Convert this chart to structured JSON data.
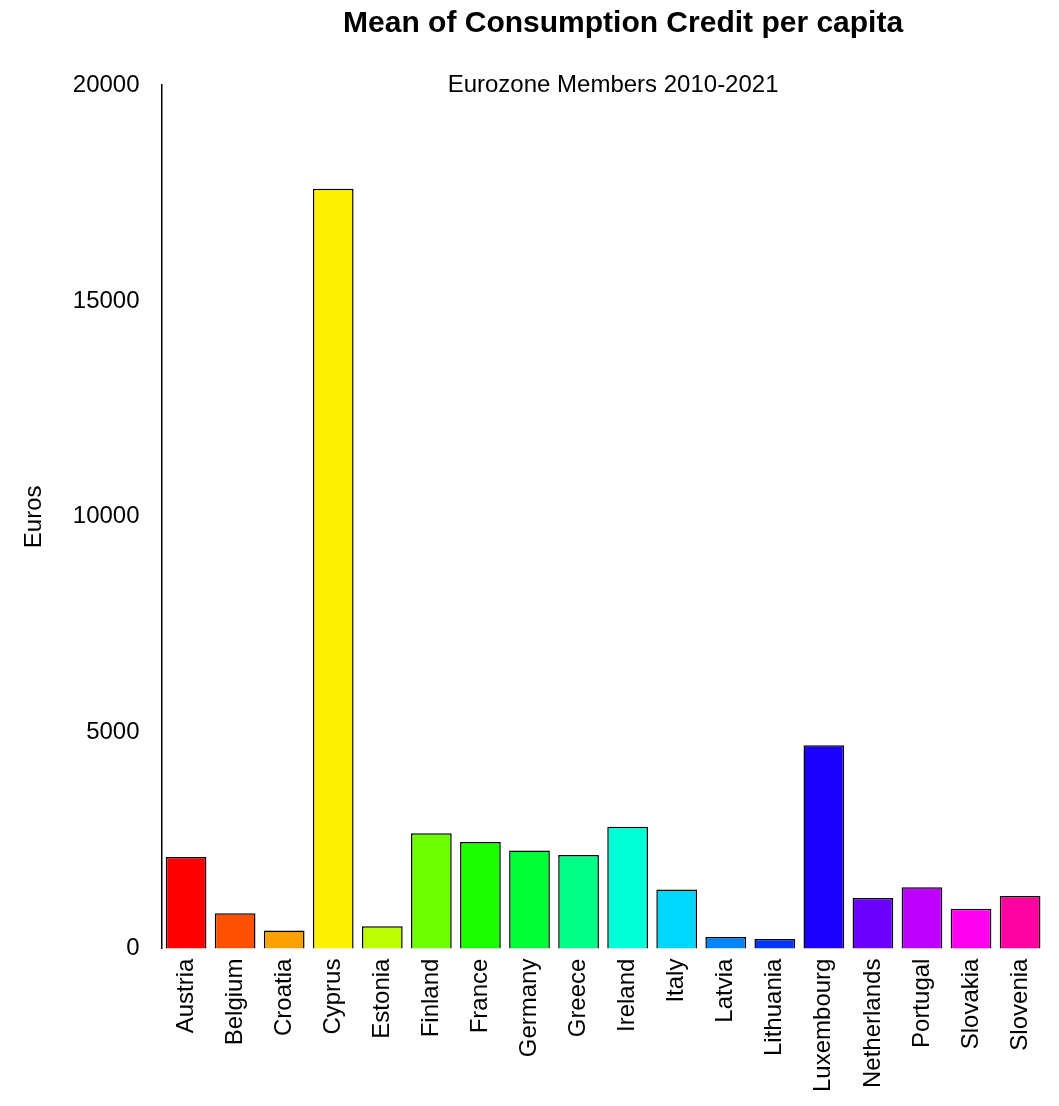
{
  "chart_data": {
    "type": "bar",
    "title": "Mean of Consumption Credit per capita",
    "subtitle": "Eurozone Members 2010-2021",
    "ylabel": "Euros",
    "categories": [
      "Austria",
      "Belgium",
      "Croatia",
      "Cyprus",
      "Estonia",
      "Finland",
      "France",
      "Germany",
      "Greece",
      "Ireland",
      "Italy",
      "Latvia",
      "Lithuania",
      "Luxembourg",
      "Netherlands",
      "Portugal",
      "Slovakia",
      "Slovenia"
    ],
    "values": [
      2120,
      820,
      420,
      17600,
      520,
      2670,
      2470,
      2270,
      2170,
      2820,
      1370,
      270,
      220,
      4710,
      1170,
      1420,
      920,
      1220
    ],
    "colors": [
      "#ff0000",
      "#ff5000",
      "#ffa100",
      "#fff100",
      "#bcff00",
      "#6bff00",
      "#1bff00",
      "#00ff36",
      "#00ff86",
      "#00ffd7",
      "#00d7ff",
      "#0086ff",
      "#0036ff",
      "#1b00ff",
      "#6b00ff",
      "#bc00ff",
      "#ff00f1",
      "#ff00a1"
    ],
    "ylim": [
      0,
      20000
    ],
    "yticks": [
      0,
      5000,
      10000,
      15000,
      20000
    ],
    "grid": false,
    "legend": false
  }
}
